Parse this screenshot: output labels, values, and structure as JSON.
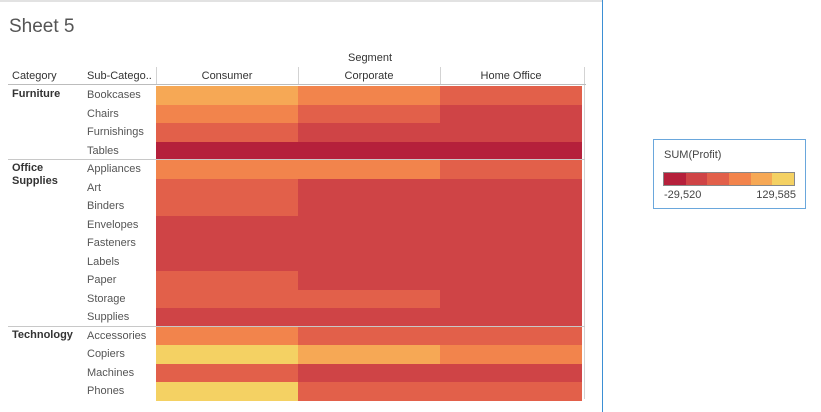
{
  "sheet": {
    "title": "Sheet 5",
    "segment_header": "Segment",
    "category_header": "Category",
    "subcategory_header": "Sub-Catego..",
    "segments": [
      "Consumer",
      "Corporate",
      "Home Office"
    ]
  },
  "colors": {
    "c1": "#b5203b",
    "c2": "#cf4446",
    "c3": "#e2604a",
    "c4": "#f2844c",
    "c5": "#f6a855",
    "c6": "#f4d163"
  },
  "categories": [
    {
      "name": "Furniture",
      "rows": [
        {
          "sub": "Bookcases",
          "cells": [
            "c5",
            "c4",
            "c3"
          ]
        },
        {
          "sub": "Chairs",
          "cells": [
            "c4",
            "c3",
            "c2"
          ]
        },
        {
          "sub": "Furnishings",
          "cells": [
            "c3",
            "c2",
            "c2"
          ]
        },
        {
          "sub": "Tables",
          "cells": [
            "c1",
            "c1",
            "c1"
          ]
        }
      ]
    },
    {
      "name": "Office Supplies",
      "rows": [
        {
          "sub": "Appliances",
          "cells": [
            "c4",
            "c4",
            "c3"
          ]
        },
        {
          "sub": "Art",
          "cells": [
            "c3",
            "c2",
            "c2"
          ]
        },
        {
          "sub": "Binders",
          "cells": [
            "c3",
            "c2",
            "c2"
          ]
        },
        {
          "sub": "Envelopes",
          "cells": [
            "c2",
            "c2",
            "c2"
          ]
        },
        {
          "sub": "Fasteners",
          "cells": [
            "c2",
            "c2",
            "c2"
          ]
        },
        {
          "sub": "Labels",
          "cells": [
            "c2",
            "c2",
            "c2"
          ]
        },
        {
          "sub": "Paper",
          "cells": [
            "c3",
            "c2",
            "c2"
          ]
        },
        {
          "sub": "Storage",
          "cells": [
            "c3",
            "c3",
            "c2"
          ]
        },
        {
          "sub": "Supplies",
          "cells": [
            "c2",
            "c2",
            "c2"
          ]
        }
      ]
    },
    {
      "name": "Technology",
      "rows": [
        {
          "sub": "Accessories",
          "cells": [
            "c4",
            "c3",
            "c3"
          ]
        },
        {
          "sub": "Copiers",
          "cells": [
            "c6",
            "c5",
            "c4"
          ]
        },
        {
          "sub": "Machines",
          "cells": [
            "c3",
            "c2",
            "c2"
          ]
        },
        {
          "sub": "Phones",
          "cells": [
            "c6",
            "c3",
            "c3"
          ]
        }
      ]
    }
  ],
  "legend": {
    "title": "SUM(Profit)",
    "min": "-29,520",
    "max": "129,585",
    "steps": [
      "c1",
      "c2",
      "c3",
      "c4",
      "c5",
      "c6"
    ]
  }
}
